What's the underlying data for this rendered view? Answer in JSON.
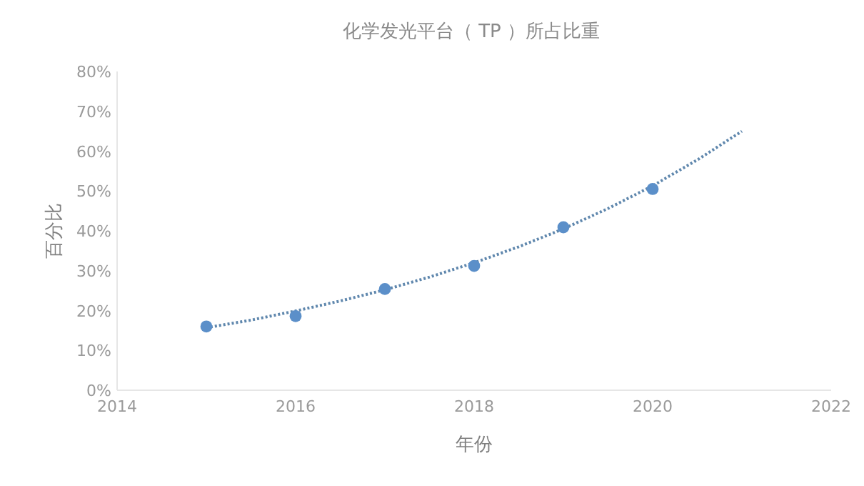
{
  "chart_data": {
    "type": "scatter",
    "title": "化学发光平台（ TP ）所占比重",
    "xlabel": "年份",
    "ylabel": "百分比",
    "xlim": [
      2014,
      2022
    ],
    "xticks": [
      2014,
      2016,
      2018,
      2020,
      2022
    ],
    "ylim": [
      0,
      80
    ],
    "yticks": [
      {
        "value": 0,
        "label": "0%"
      },
      {
        "value": 10,
        "label": "10%"
      },
      {
        "value": 20,
        "label": "20%"
      },
      {
        "value": 30,
        "label": "30%"
      },
      {
        "value": 40,
        "label": "40%"
      },
      {
        "value": 50,
        "label": "50%"
      },
      {
        "value": 60,
        "label": "60%"
      },
      {
        "value": 70,
        "label": "70%"
      },
      {
        "value": 80,
        "label": "80%"
      }
    ],
    "series": [
      {
        "type": "line",
        "line_style": "dotted",
        "color": "#5f87ad",
        "x": [
          2015,
          2015.5,
          2016,
          2016.5,
          2017,
          2017.5,
          2018,
          2018.5,
          2019,
          2019.5,
          2020,
          2020.5,
          2021
        ],
        "values": [
          15.7,
          17.6,
          19.9,
          22.4,
          25.2,
          28.4,
          32,
          36,
          40.5,
          45.6,
          51.3,
          57.8,
          65
        ]
      },
      {
        "marker": "circle",
        "color": "#5b8fc9",
        "x": [
          2015,
          2016,
          2017,
          2018,
          2019,
          2020
        ],
        "values": [
          16,
          18.6,
          25.4,
          31.2,
          40.9,
          50.5
        ]
      }
    ]
  }
}
